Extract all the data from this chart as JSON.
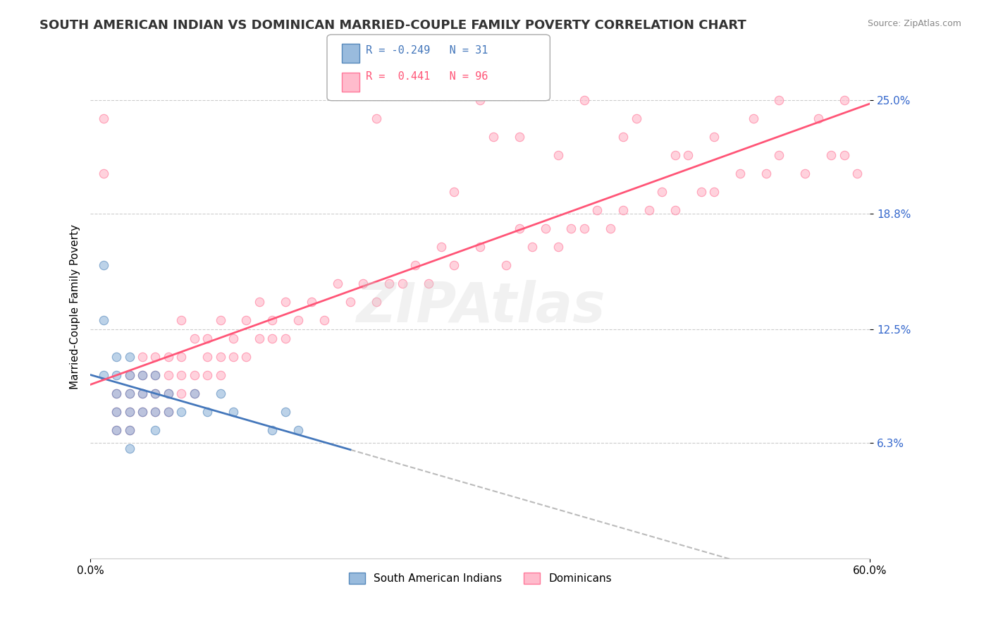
{
  "title": "SOUTH AMERICAN INDIAN VS DOMINICAN MARRIED-COUPLE FAMILY POVERTY CORRELATION CHART",
  "source": "Source: ZipAtlas.com",
  "ylabel": "Married-Couple Family Poverty",
  "xmin": 0.0,
  "xmax": 0.6,
  "ymin": 0.0,
  "ymax": 0.275,
  "yticks": [
    0.063,
    0.125,
    0.188,
    0.25
  ],
  "ytick_labels": [
    "6.3%",
    "12.5%",
    "18.8%",
    "25.0%"
  ],
  "grid_color": "#cccccc",
  "bg_color": "#ffffff",
  "watermark": "ZIPAtlas",
  "blue_color": "#99bbdd",
  "pink_color": "#ffbbcc",
  "blue_edge_color": "#5588bb",
  "pink_edge_color": "#ff7799",
  "blue_line_color": "#4477bb",
  "pink_line_color": "#ff5577",
  "dash_line_color": "#bbbbbb",
  "blue_scatter_x": [
    0.01,
    0.01,
    0.01,
    0.02,
    0.02,
    0.02,
    0.02,
    0.02,
    0.03,
    0.03,
    0.03,
    0.03,
    0.03,
    0.03,
    0.04,
    0.04,
    0.04,
    0.05,
    0.05,
    0.05,
    0.05,
    0.06,
    0.06,
    0.07,
    0.08,
    0.09,
    0.1,
    0.11,
    0.14,
    0.15,
    0.16
  ],
  "blue_scatter_y": [
    0.16,
    0.13,
    0.1,
    0.07,
    0.08,
    0.09,
    0.1,
    0.11,
    0.06,
    0.07,
    0.08,
    0.09,
    0.1,
    0.11,
    0.08,
    0.09,
    0.1,
    0.07,
    0.08,
    0.09,
    0.1,
    0.08,
    0.09,
    0.08,
    0.09,
    0.08,
    0.09,
    0.08,
    0.07,
    0.08,
    0.07
  ],
  "pink_scatter_x": [
    0.01,
    0.01,
    0.02,
    0.02,
    0.02,
    0.03,
    0.03,
    0.03,
    0.03,
    0.04,
    0.04,
    0.04,
    0.04,
    0.05,
    0.05,
    0.05,
    0.05,
    0.06,
    0.06,
    0.06,
    0.06,
    0.07,
    0.07,
    0.07,
    0.07,
    0.08,
    0.08,
    0.08,
    0.09,
    0.09,
    0.09,
    0.1,
    0.1,
    0.1,
    0.11,
    0.11,
    0.12,
    0.12,
    0.13,
    0.13,
    0.14,
    0.14,
    0.15,
    0.15,
    0.16,
    0.17,
    0.18,
    0.19,
    0.2,
    0.21,
    0.22,
    0.23,
    0.24,
    0.25,
    0.26,
    0.27,
    0.28,
    0.3,
    0.32,
    0.33,
    0.34,
    0.35,
    0.36,
    0.37,
    0.38,
    0.39,
    0.4,
    0.41,
    0.43,
    0.44,
    0.45,
    0.47,
    0.48,
    0.5,
    0.52,
    0.53,
    0.55,
    0.57,
    0.58,
    0.59,
    0.3,
    0.33,
    0.38,
    0.42,
    0.45,
    0.48,
    0.51,
    0.53,
    0.56,
    0.58,
    0.22,
    0.28,
    0.31,
    0.36,
    0.41,
    0.46
  ],
  "pink_scatter_y": [
    0.21,
    0.24,
    0.07,
    0.08,
    0.09,
    0.07,
    0.08,
    0.09,
    0.1,
    0.08,
    0.09,
    0.1,
    0.11,
    0.08,
    0.09,
    0.1,
    0.11,
    0.08,
    0.09,
    0.1,
    0.11,
    0.09,
    0.1,
    0.11,
    0.13,
    0.09,
    0.1,
    0.12,
    0.1,
    0.11,
    0.12,
    0.1,
    0.11,
    0.13,
    0.11,
    0.12,
    0.11,
    0.13,
    0.12,
    0.14,
    0.12,
    0.13,
    0.12,
    0.14,
    0.13,
    0.14,
    0.13,
    0.15,
    0.14,
    0.15,
    0.14,
    0.15,
    0.15,
    0.16,
    0.15,
    0.17,
    0.16,
    0.17,
    0.16,
    0.18,
    0.17,
    0.18,
    0.17,
    0.18,
    0.18,
    0.19,
    0.18,
    0.19,
    0.19,
    0.2,
    0.19,
    0.2,
    0.2,
    0.21,
    0.21,
    0.22,
    0.21,
    0.22,
    0.22,
    0.21,
    0.25,
    0.23,
    0.25,
    0.24,
    0.22,
    0.23,
    0.24,
    0.25,
    0.24,
    0.25,
    0.24,
    0.2,
    0.23,
    0.22,
    0.23,
    0.22
  ],
  "title_fontsize": 13,
  "axis_label_fontsize": 11,
  "tick_fontsize": 11,
  "scatter_size": 80,
  "scatter_alpha": 0.65,
  "line_width": 2.0,
  "blue_line_x_end": 0.2,
  "legend_r1_val": "-0.249",
  "legend_n1_val": "31",
  "legend_r2_val": " 0.441",
  "legend_n2_val": "96"
}
